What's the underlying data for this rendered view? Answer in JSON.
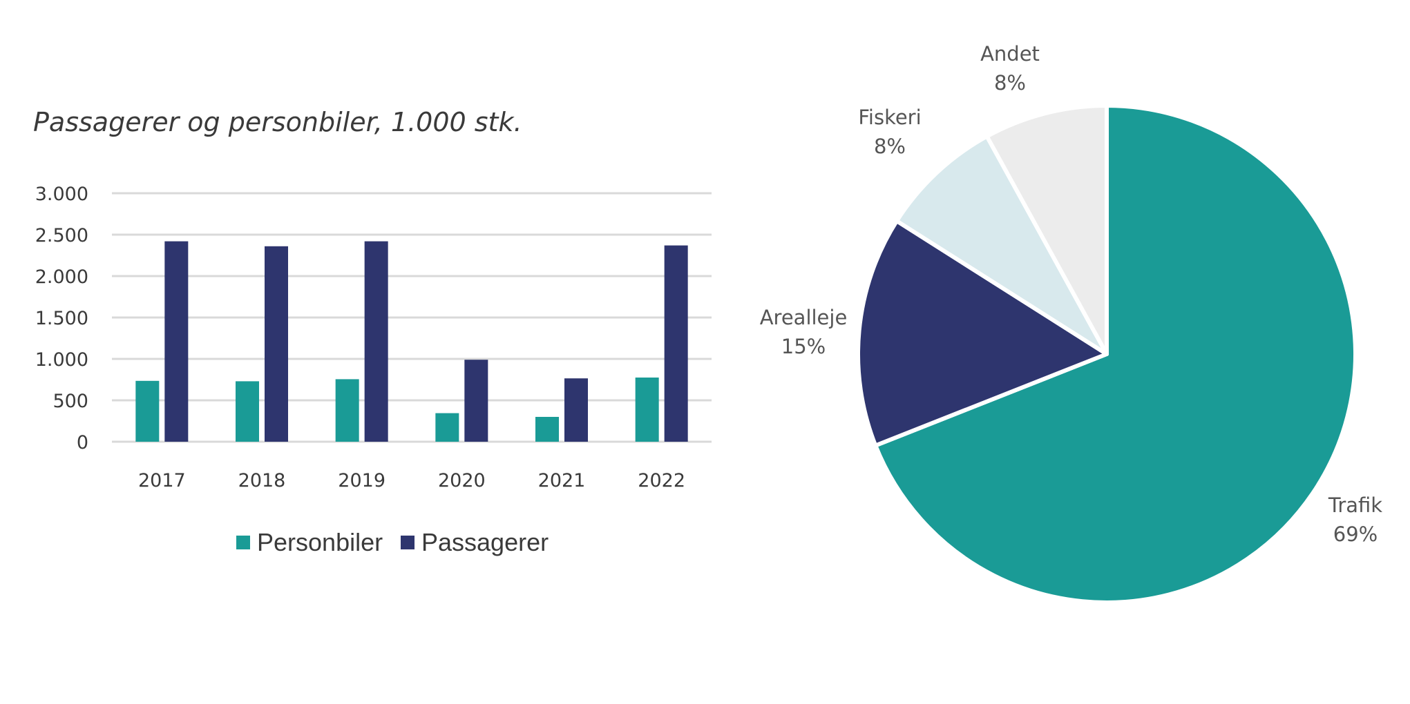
{
  "chart_data": [
    {
      "type": "bar",
      "title": "Passagerer og personbiler, 1.000 stk.",
      "xlabel": "",
      "ylabel": "",
      "categories": [
        "2017",
        "2018",
        "2019",
        "2020",
        "2021",
        "2022"
      ],
      "series": [
        {
          "name": "Personbiler",
          "color": "#1a9b96",
          "values": [
            735,
            730,
            755,
            345,
            300,
            775
          ]
        },
        {
          "name": "Passagerer",
          "color": "#2e356e",
          "values": [
            2420,
            2360,
            2420,
            990,
            765,
            2370
          ]
        }
      ],
      "ylim": [
        0,
        3000
      ],
      "yticks": [
        {
          "value": 0,
          "label": "0"
        },
        {
          "value": 500,
          "label": "500"
        },
        {
          "value": 1000,
          "label": "1.000"
        },
        {
          "value": 1500,
          "label": "1.500"
        },
        {
          "value": 2000,
          "label": "2.000"
        },
        {
          "value": 2500,
          "label": "2.500"
        },
        {
          "value": 3000,
          "label": "3.000"
        }
      ],
      "grid": true,
      "legend_position": "bottom"
    },
    {
      "type": "pie",
      "title": "",
      "start_angle": "12 o'clock",
      "direction": "clockwise",
      "slices": [
        {
          "label": "Trafik",
          "percent_label": "69%",
          "value": 69,
          "color": "#1a9b96"
        },
        {
          "label": "Arealleje",
          "percent_label": "15%",
          "value": 15,
          "color": "#2e356e"
        },
        {
          "label": "Fiskeri",
          "percent_label": "8%",
          "value": 8,
          "color": "#d8e9ed"
        },
        {
          "label": "Andet",
          "percent_label": "8%",
          "value": 8,
          "color": "#ececec"
        }
      ]
    }
  ]
}
